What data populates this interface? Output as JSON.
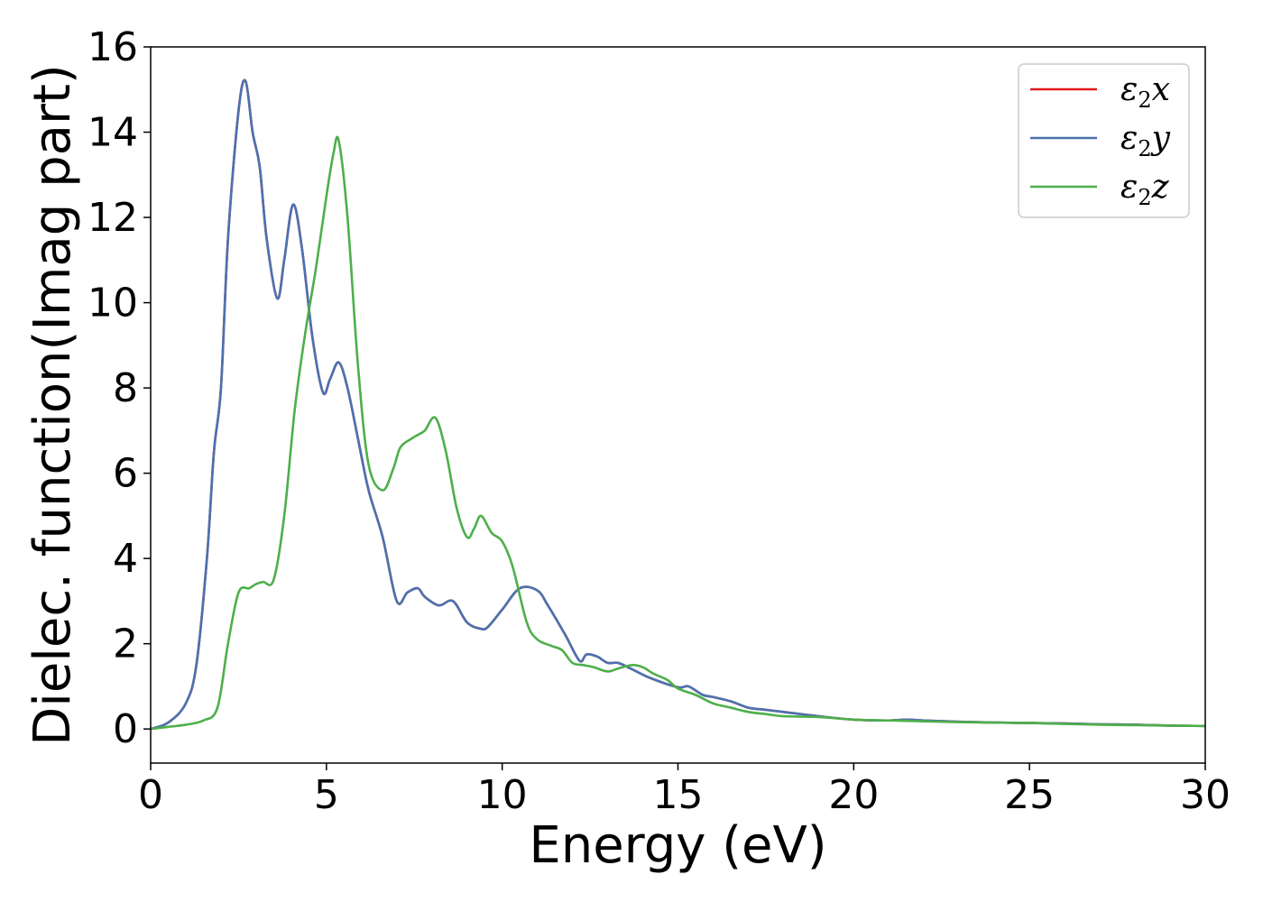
{
  "chart_data": {
    "type": "line",
    "xlabel": "Energy (eV)",
    "ylabel": "Dielec. function(Imag part)",
    "xlim": [
      0,
      30
    ],
    "ylim": [
      -0.8,
      16
    ],
    "xticks": [
      0,
      5,
      10,
      15,
      20,
      25,
      30
    ],
    "yticks": [
      0,
      2,
      4,
      6,
      8,
      10,
      12,
      14,
      16
    ],
    "grid": false,
    "legend_position": "top-right",
    "series": [
      {
        "name": "ε2x",
        "legend_base": "ε",
        "legend_sub": "2",
        "legend_suffix": "x",
        "color": "#e41a1c",
        "x": [
          0,
          0.5,
          1.0,
          1.3,
          1.6,
          1.8,
          2.0,
          2.2,
          2.5,
          2.7,
          2.9,
          3.1,
          3.3,
          3.6,
          3.8,
          4.05,
          4.3,
          4.6,
          4.9,
          5.1,
          5.35,
          5.6,
          5.9,
          6.2,
          6.6,
          7.0,
          7.3,
          7.6,
          7.8,
          8.2,
          8.6,
          9.0,
          9.4,
          9.6,
          10.0,
          10.5,
          11.0,
          11.3,
          11.8,
          12.2,
          12.4,
          12.7,
          13.0,
          13.3,
          13.7,
          14.2,
          15.0,
          15.3,
          15.7,
          16.0,
          16.5,
          17.0,
          17.5,
          18.0,
          19.0,
          20.0,
          21.0,
          21.5,
          22.0,
          23.0,
          24.0,
          25.0,
          26.0,
          27.0,
          28.0,
          29.0,
          30.0
        ],
        "values": [
          0.0,
          0.15,
          0.6,
          1.5,
          4.0,
          6.5,
          8.0,
          11.5,
          14.5,
          15.2,
          14.0,
          13.2,
          11.5,
          10.1,
          11.0,
          12.3,
          11.3,
          9.2,
          7.9,
          8.2,
          8.6,
          8.0,
          6.8,
          5.6,
          4.5,
          3.0,
          3.2,
          3.3,
          3.1,
          2.9,
          3.0,
          2.5,
          2.35,
          2.4,
          2.8,
          3.3,
          3.25,
          2.9,
          2.2,
          1.6,
          1.75,
          1.7,
          1.55,
          1.55,
          1.4,
          1.2,
          0.98,
          1.0,
          0.8,
          0.75,
          0.65,
          0.5,
          0.45,
          0.4,
          0.3,
          0.22,
          0.2,
          0.22,
          0.2,
          0.17,
          0.15,
          0.14,
          0.13,
          0.11,
          0.1,
          0.08,
          0.07
        ]
      },
      {
        "name": "ε2y",
        "legend_base": "ε",
        "legend_sub": "2",
        "legend_suffix": "y",
        "color": "#4a72b0",
        "x": [
          0,
          0.5,
          1.0,
          1.3,
          1.6,
          1.8,
          2.0,
          2.2,
          2.5,
          2.7,
          2.9,
          3.1,
          3.3,
          3.6,
          3.8,
          4.05,
          4.3,
          4.6,
          4.9,
          5.1,
          5.35,
          5.6,
          5.9,
          6.2,
          6.6,
          7.0,
          7.3,
          7.6,
          7.8,
          8.2,
          8.6,
          9.0,
          9.4,
          9.6,
          10.0,
          10.5,
          11.0,
          11.3,
          11.8,
          12.2,
          12.4,
          12.7,
          13.0,
          13.3,
          13.7,
          14.2,
          15.0,
          15.3,
          15.7,
          16.0,
          16.5,
          17.0,
          17.5,
          18.0,
          19.0,
          20.0,
          21.0,
          21.5,
          22.0,
          23.0,
          24.0,
          25.0,
          26.0,
          27.0,
          28.0,
          29.0,
          30.0
        ],
        "values": [
          0.0,
          0.15,
          0.6,
          1.5,
          4.0,
          6.5,
          8.0,
          11.5,
          14.5,
          15.2,
          14.0,
          13.2,
          11.5,
          10.1,
          11.0,
          12.3,
          11.3,
          9.2,
          7.9,
          8.2,
          8.6,
          8.0,
          6.8,
          5.6,
          4.5,
          3.0,
          3.2,
          3.3,
          3.1,
          2.9,
          3.0,
          2.5,
          2.35,
          2.4,
          2.8,
          3.3,
          3.25,
          2.9,
          2.2,
          1.6,
          1.75,
          1.7,
          1.55,
          1.55,
          1.4,
          1.2,
          0.98,
          1.0,
          0.8,
          0.75,
          0.65,
          0.5,
          0.45,
          0.4,
          0.3,
          0.22,
          0.2,
          0.22,
          0.2,
          0.17,
          0.15,
          0.14,
          0.13,
          0.11,
          0.1,
          0.08,
          0.07
        ]
      },
      {
        "name": "ε2z",
        "legend_base": "ε",
        "legend_sub": "2",
        "legend_suffix": "z",
        "color": "#4daf4a",
        "x": [
          0,
          0.5,
          1.0,
          1.5,
          1.9,
          2.2,
          2.5,
          2.8,
          3.0,
          3.2,
          3.5,
          3.8,
          4.1,
          4.4,
          4.7,
          5.0,
          5.2,
          5.35,
          5.6,
          5.9,
          6.2,
          6.6,
          6.9,
          7.1,
          7.4,
          7.6,
          7.8,
          8.1,
          8.4,
          8.7,
          9.0,
          9.2,
          9.4,
          9.7,
          10.0,
          10.3,
          10.7,
          11.0,
          11.4,
          11.7,
          12.0,
          12.3,
          12.6,
          13.0,
          13.3,
          13.7,
          14.0,
          14.3,
          14.7,
          15.0,
          15.5,
          16.0,
          16.5,
          17.0,
          17.5,
          18.0,
          19.0,
          20.0,
          21.0,
          22.0,
          23.0,
          24.0,
          25.0,
          26.0,
          27.0,
          28.0,
          29.0,
          30.0
        ],
        "values": [
          0.0,
          0.05,
          0.1,
          0.2,
          0.5,
          2.0,
          3.2,
          3.3,
          3.4,
          3.45,
          3.5,
          5.0,
          7.5,
          9.3,
          10.8,
          12.5,
          13.5,
          13.8,
          12.0,
          8.5,
          6.2,
          5.6,
          6.1,
          6.6,
          6.8,
          6.9,
          7.0,
          7.3,
          6.5,
          5.2,
          4.5,
          4.7,
          5.0,
          4.6,
          4.4,
          3.8,
          2.5,
          2.1,
          1.95,
          1.85,
          1.55,
          1.5,
          1.45,
          1.35,
          1.42,
          1.5,
          1.45,
          1.3,
          1.15,
          0.95,
          0.8,
          0.6,
          0.5,
          0.4,
          0.35,
          0.3,
          0.28,
          0.22,
          0.2,
          0.18,
          0.16,
          0.15,
          0.14,
          0.12,
          0.1,
          0.09,
          0.08,
          0.07
        ]
      }
    ]
  }
}
